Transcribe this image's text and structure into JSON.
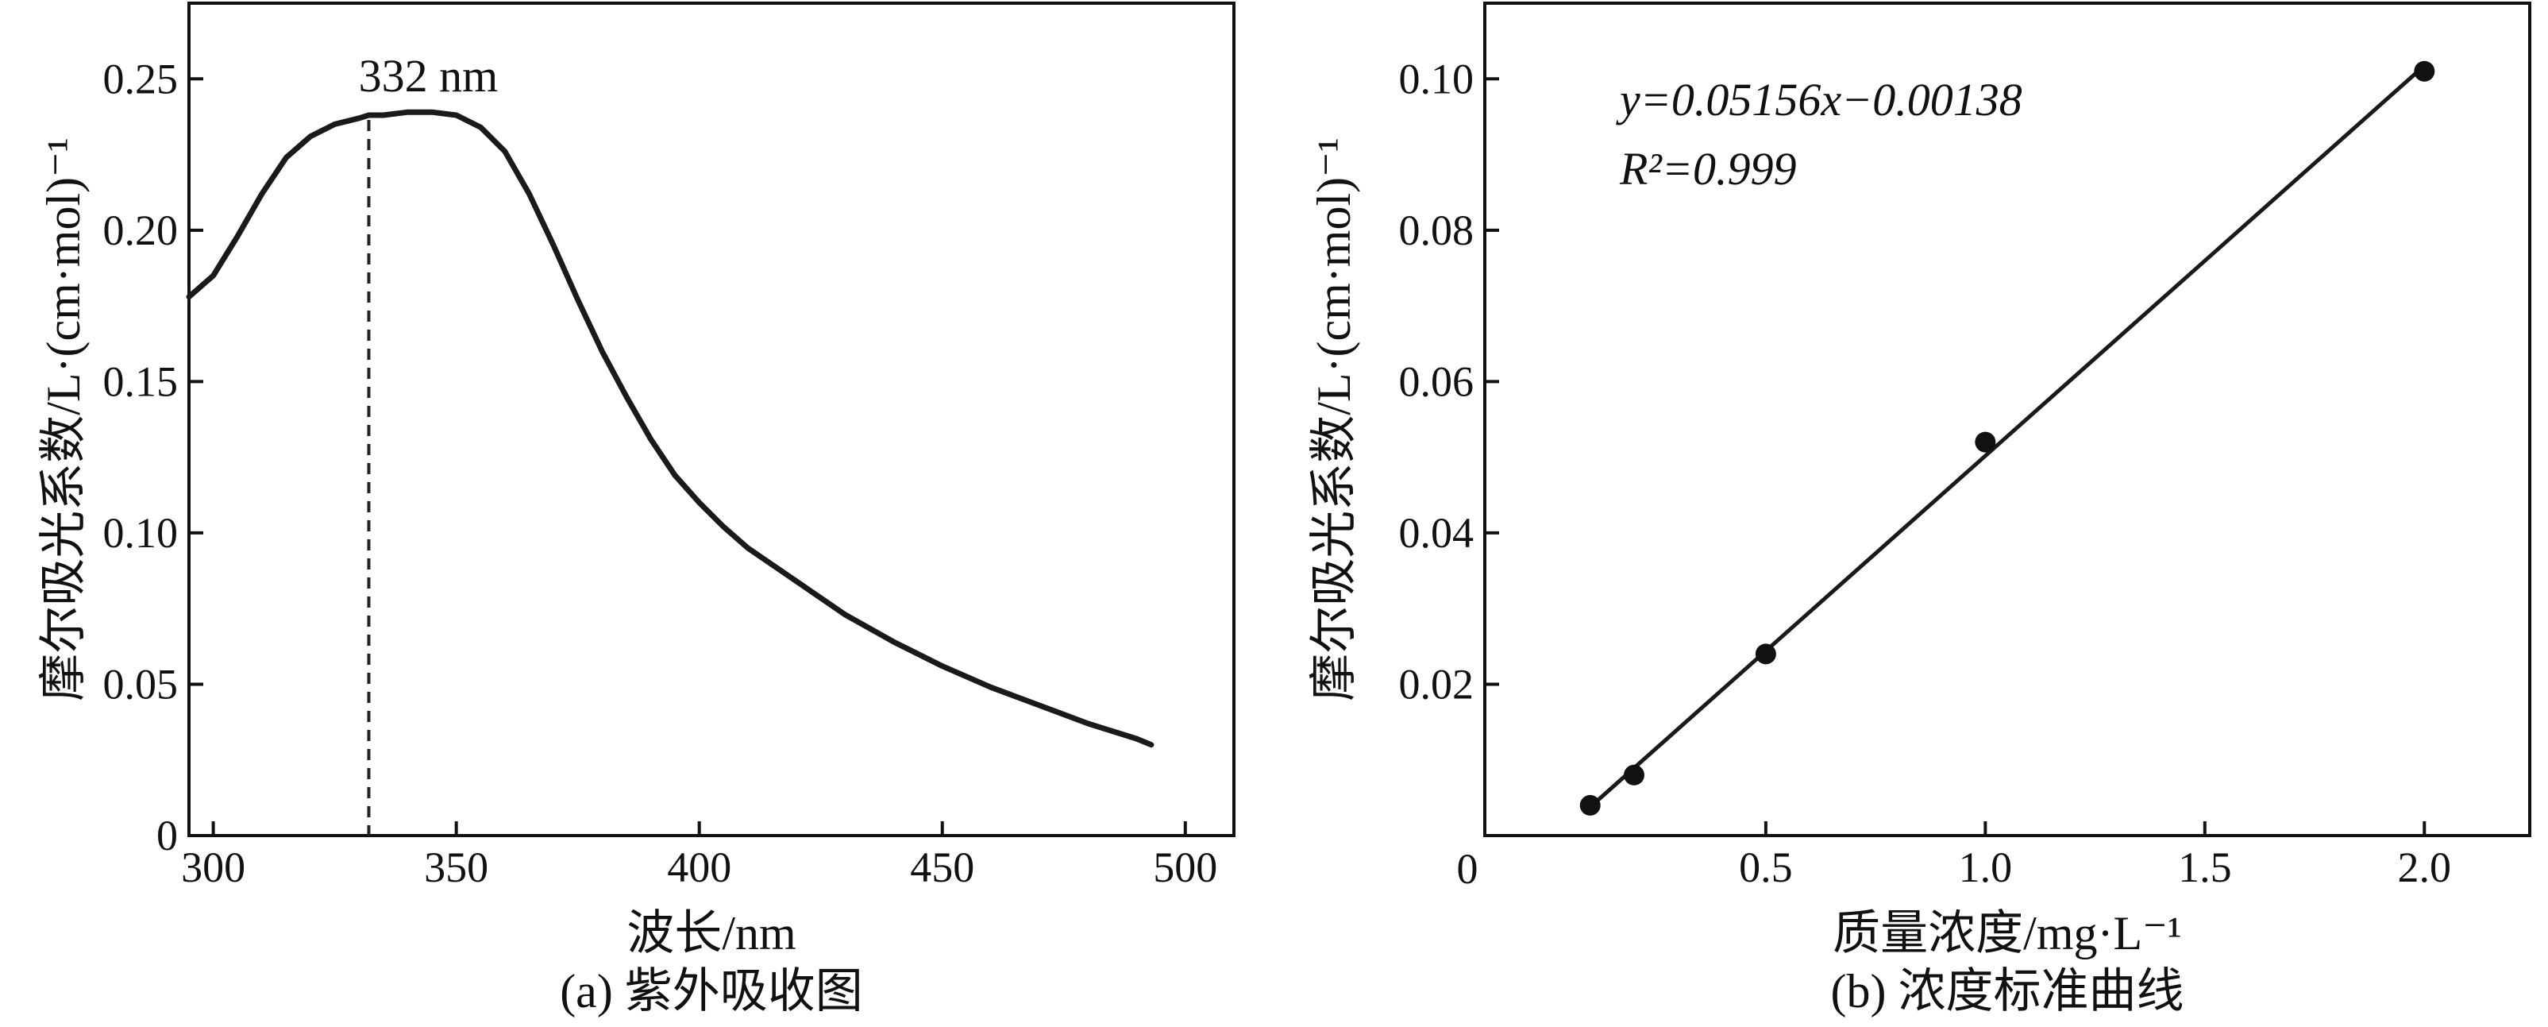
{
  "chart_data": [
    {
      "panel_id": "a",
      "type": "line",
      "caption": "(a) 紫外吸收图",
      "xlabel": "波长/nm",
      "ylabel": "摩尔吸光系数/L·(cm·mol)⁻¹",
      "xlim": [
        295,
        510
      ],
      "ylim": [
        0,
        0.275
      ],
      "xticks": [
        300,
        350,
        400,
        450,
        500
      ],
      "yticks": [
        0,
        0.05,
        0.1,
        0.15,
        0.2,
        0.25
      ],
      "ytick_labels": [
        "0",
        "0.05",
        "0.10",
        "0.15",
        "0.20",
        "0.25"
      ],
      "grid": false,
      "peak_annotation": {
        "label": "332 nm",
        "x": 332
      },
      "series": [
        {
          "x": [
            295,
            300,
            305,
            310,
            315,
            320,
            325,
            330,
            332,
            335,
            340,
            345,
            350,
            355,
            360,
            365,
            370,
            375,
            380,
            385,
            390,
            395,
            400,
            405,
            410,
            420,
            430,
            440,
            450,
            460,
            470,
            480,
            490,
            493
          ],
          "y": [
            0.178,
            0.185,
            0.198,
            0.212,
            0.224,
            0.231,
            0.235,
            0.237,
            0.238,
            0.238,
            0.239,
            0.239,
            0.238,
            0.234,
            0.226,
            0.212,
            0.195,
            0.177,
            0.16,
            0.145,
            0.131,
            0.119,
            0.11,
            0.102,
            0.095,
            0.084,
            0.073,
            0.064,
            0.056,
            0.049,
            0.043,
            0.037,
            0.032,
            0.03
          ]
        }
      ]
    },
    {
      "panel_id": "b",
      "type": "scatter",
      "caption": "(b) 浓度标准曲线",
      "xlabel": "质量浓度/mg·L⁻¹",
      "ylabel": "摩尔吸光系数/L·(cm·mol)⁻¹",
      "xlim": [
        -0.14,
        2.24
      ],
      "ylim": [
        0,
        0.11
      ],
      "origin_label": "0",
      "xticks": [
        0.5,
        1.0,
        1.5,
        2.0
      ],
      "xtick_labels": [
        "0.5",
        "1.0",
        "1.5",
        "2.0"
      ],
      "yticks": [
        0.02,
        0.04,
        0.06,
        0.08,
        0.1
      ],
      "ytick_labels": [
        "0.02",
        "0.04",
        "0.06",
        "0.08",
        "0.10"
      ],
      "grid": false,
      "equation": "y=0.05156x−0.00138",
      "r_squared": "R²=0.999",
      "fit": {
        "slope": 0.05156,
        "intercept": -0.00138,
        "x_range": [
          0.1,
          2.0
        ]
      },
      "series": [
        {
          "x": [
            0.1,
            0.2,
            0.5,
            1.0,
            2.0
          ],
          "y": [
            0.004,
            0.008,
            0.024,
            0.052,
            0.101
          ]
        }
      ]
    }
  ]
}
